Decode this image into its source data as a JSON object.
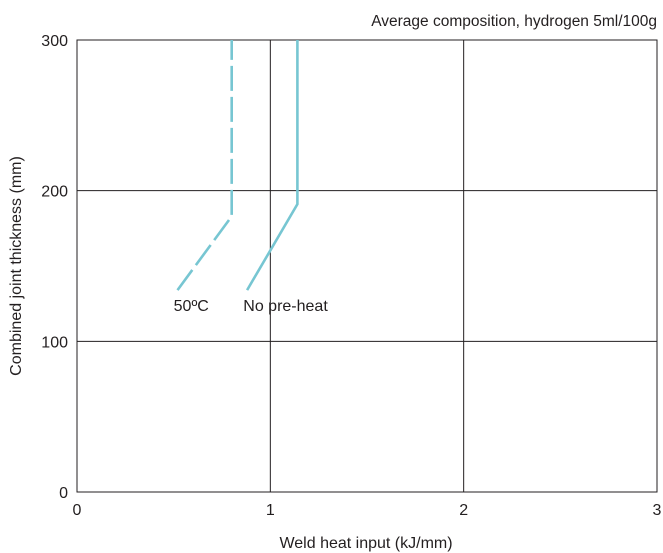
{
  "chart_data": {
    "type": "line",
    "title": "",
    "subtitle": "Average composition, hydrogen 5ml/100g",
    "xlabel": "Weld heat input (kJ/mm)",
    "ylabel": "Combined joint thickness (mm)",
    "xlim": [
      0,
      3
    ],
    "ylim": [
      0,
      300
    ],
    "xticks": [
      0,
      1,
      2,
      3
    ],
    "yticks": [
      0,
      100,
      200,
      300
    ],
    "xtick_labels": [
      "0",
      "1",
      "2",
      "3"
    ],
    "ytick_labels": [
      "0",
      "100",
      "200",
      "300"
    ],
    "grid": true,
    "legend": "none",
    "series": [
      {
        "name": "50ºC",
        "color": "#77c6d2",
        "style": "dashed",
        "points": [
          [
            0.52,
            134
          ],
          [
            0.8,
            183
          ],
          [
            0.8,
            300
          ]
        ]
      },
      {
        "name": "No pre-heat",
        "color": "#77c6d2",
        "style": "solid",
        "points": [
          [
            0.88,
            134
          ],
          [
            1.14,
            191
          ],
          [
            1.14,
            300
          ]
        ]
      }
    ],
    "annotations": [
      {
        "text": "50ºC",
        "x": 0.5,
        "y": 124
      },
      {
        "text": "No pre-heat",
        "x": 0.86,
        "y": 124
      }
    ]
  }
}
